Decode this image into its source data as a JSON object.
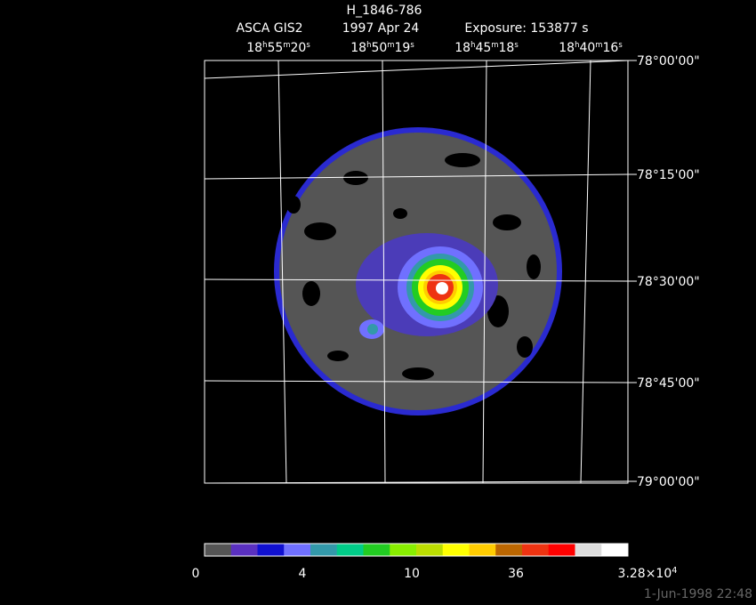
{
  "header": {
    "title": "H_1846-786",
    "instrument": "ASCA GIS2",
    "date": "1997 Apr 24",
    "exposure": "Exposure: 153877 s"
  },
  "ra_labels": [
    [
      "18",
      "h",
      "55",
      "m",
      "20",
      "s"
    ],
    [
      "18",
      "h",
      "50",
      "m",
      "19",
      "s"
    ],
    [
      "18",
      "h",
      "45",
      "m",
      "18",
      "s"
    ],
    [
      "18",
      "h",
      "40",
      "m",
      "16",
      "s"
    ]
  ],
  "dec_labels": [
    "78°00'00\"",
    "78°15'00\"",
    "78°30'00\"",
    "78°45'00\"",
    "79°00'00\""
  ],
  "colorbar": {
    "colors": [
      "#555555",
      "#5a30c0",
      "#1010d0",
      "#7070ff",
      "#3399aa",
      "#00cc88",
      "#22cc22",
      "#88ee00",
      "#bbdd00",
      "#ffff00",
      "#ffcc00",
      "#bb6600",
      "#ee3311",
      "#ff0000",
      "#dddddd",
      "#ffffff"
    ],
    "labels": [
      [
        "0"
      ],
      [
        "4"
      ],
      [
        "10"
      ],
      [
        "36"
      ],
      [
        "3.28×10",
        "4"
      ]
    ]
  },
  "timestamp": "1-Jun-1998 22:48"
}
